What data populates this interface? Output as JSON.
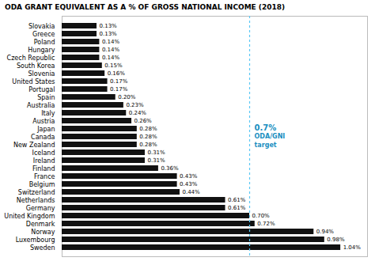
{
  "chart_data": {
    "type": "bar",
    "orientation": "horizontal",
    "title": "ODA GRANT EQUIVALENT AS A % OF GROSS NATIONAL INCOME (2018)",
    "categories": [
      "Slovakia",
      "Greece",
      "Poland",
      "Hungary",
      "Czech Republic",
      "South Korea",
      "Slovenia",
      "United States",
      "Portugal",
      "Spain",
      "Australia",
      "Italy",
      "Austria",
      "Japan",
      "Canada",
      "New Zealand",
      "Iceland",
      "Ireland",
      "Finland",
      "France",
      "Belgium",
      "Switzerland",
      "Netherlands",
      "Germany",
      "United Kingdom",
      "Denmark",
      "Norway",
      "Luxembourg",
      "Sweden"
    ],
    "values": [
      0.13,
      0.13,
      0.14,
      0.14,
      0.14,
      0.15,
      0.16,
      0.17,
      0.17,
      0.2,
      0.23,
      0.24,
      0.26,
      0.28,
      0.28,
      0.28,
      0.31,
      0.31,
      0.36,
      0.43,
      0.43,
      0.44,
      0.61,
      0.61,
      0.7,
      0.72,
      0.94,
      0.98,
      1.04
    ],
    "value_labels": [
      "0.13%",
      "0.13%",
      "0.14%",
      "0.14%",
      "0.14%",
      "0.15%",
      "0.16%",
      "0.17%",
      "0.17%",
      "0.20%",
      "0.23%",
      "0.24%",
      "0.26%",
      "0.28%",
      "0.28%",
      "0.28%",
      "0.31%",
      "0.31%",
      "0.36%",
      "0.43%",
      "0.43%",
      "0.44%",
      "0.61%",
      "0.61%",
      "0.70%",
      "0.72%",
      "0.94%",
      "0.98%",
      "1.04%"
    ],
    "data_labels": true,
    "color": "#111111",
    "xlim": [
      0,
      1.14
    ],
    "tick_labels": "y",
    "grid": false,
    "reference_line": {
      "value": 0.7,
      "color": "#5bc8f5",
      "line_style": "dashed"
    },
    "annotations": [
      {
        "text": "0.7%",
        "color": "#1a8fc1"
      },
      {
        "text": "ODA/GNI",
        "color": "#1a8fc1"
      },
      {
        "text": "target",
        "color": "#1a8fc1"
      }
    ]
  }
}
